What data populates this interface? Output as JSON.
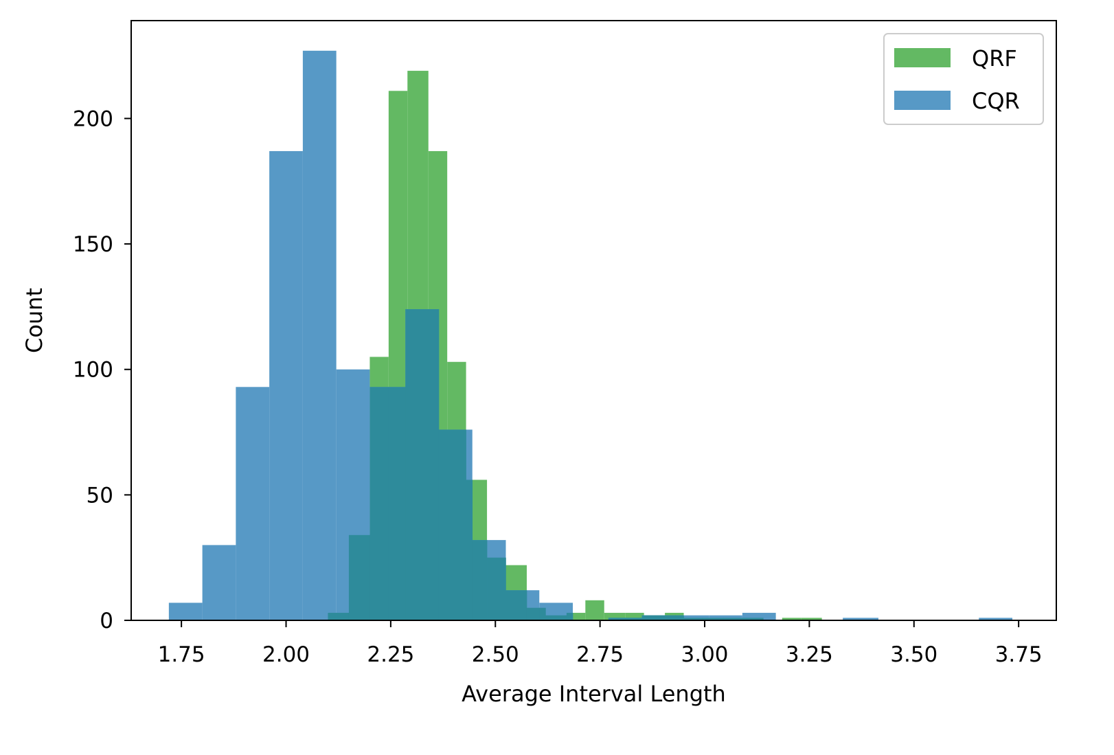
{
  "chart_data": {
    "type": "bar",
    "title": "",
    "xlabel": "Average Interval Length",
    "ylabel": "Count",
    "xlim": [
      1.63,
      3.84
    ],
    "ylim": [
      0,
      239
    ],
    "xticks": [
      1.75,
      2.0,
      2.25,
      2.5,
      2.75,
      3.0,
      3.25,
      3.5,
      3.75
    ],
    "xtick_labels": [
      "1.75",
      "2.00",
      "2.25",
      "2.50",
      "2.75",
      "3.00",
      "3.25",
      "3.50",
      "3.75"
    ],
    "yticks": [
      0,
      50,
      100,
      150,
      200
    ],
    "ytick_labels": [
      "0",
      "50",
      "100",
      "150",
      "200"
    ],
    "grid": false,
    "legend_position": "top-right",
    "overlap_color": "#2e8b9b",
    "series": [
      {
        "name": "QRF",
        "color": "#63b963",
        "bins": [
          {
            "x0": 2.1,
            "x1": 2.15,
            "count": 3
          },
          {
            "x0": 2.15,
            "x1": 2.2,
            "count": 34
          },
          {
            "x0": 2.2,
            "x1": 2.245,
            "count": 105
          },
          {
            "x0": 2.245,
            "x1": 2.29,
            "count": 211
          },
          {
            "x0": 2.29,
            "x1": 2.34,
            "count": 219
          },
          {
            "x0": 2.34,
            "x1": 2.385,
            "count": 187
          },
          {
            "x0": 2.385,
            "x1": 2.43,
            "count": 103
          },
          {
            "x0": 2.43,
            "x1": 2.48,
            "count": 56
          },
          {
            "x0": 2.48,
            "x1": 2.525,
            "count": 25
          },
          {
            "x0": 2.525,
            "x1": 2.575,
            "count": 22
          },
          {
            "x0": 2.575,
            "x1": 2.62,
            "count": 5
          },
          {
            "x0": 2.62,
            "x1": 2.67,
            "count": 2
          },
          {
            "x0": 2.67,
            "x1": 2.715,
            "count": 3
          },
          {
            "x0": 2.715,
            "x1": 2.76,
            "count": 8
          },
          {
            "x0": 2.76,
            "x1": 2.81,
            "count": 3
          },
          {
            "x0": 2.81,
            "x1": 2.855,
            "count": 3
          },
          {
            "x0": 2.855,
            "x1": 2.905,
            "count": 2
          },
          {
            "x0": 2.905,
            "x1": 2.95,
            "count": 3
          },
          {
            "x0": 2.95,
            "x1": 2.995,
            "count": 1
          },
          {
            "x0": 2.995,
            "x1": 3.045,
            "count": 1
          },
          {
            "x0": 3.045,
            "x1": 3.09,
            "count": 1
          },
          {
            "x0": 3.09,
            "x1": 3.14,
            "count": 1
          },
          {
            "x0": 3.14,
            "x1": 3.185,
            "count": 0
          },
          {
            "x0": 3.185,
            "x1": 3.23,
            "count": 1
          },
          {
            "x0": 3.23,
            "x1": 3.28,
            "count": 1
          }
        ]
      },
      {
        "name": "CQR",
        "color": "#5799c6",
        "bins": [
          {
            "x0": 1.72,
            "x1": 1.8,
            "count": 7
          },
          {
            "x0": 1.8,
            "x1": 1.88,
            "count": 30
          },
          {
            "x0": 1.88,
            "x1": 1.96,
            "count": 93
          },
          {
            "x0": 1.96,
            "x1": 2.04,
            "count": 187
          },
          {
            "x0": 2.04,
            "x1": 2.12,
            "count": 227
          },
          {
            "x0": 2.12,
            "x1": 2.2,
            "count": 100
          },
          {
            "x0": 2.2,
            "x1": 2.285,
            "count": 93
          },
          {
            "x0": 2.285,
            "x1": 2.365,
            "count": 124
          },
          {
            "x0": 2.365,
            "x1": 2.445,
            "count": 76
          },
          {
            "x0": 2.445,
            "x1": 2.525,
            "count": 32
          },
          {
            "x0": 2.525,
            "x1": 2.605,
            "count": 12
          },
          {
            "x0": 2.605,
            "x1": 2.685,
            "count": 7
          },
          {
            "x0": 2.685,
            "x1": 2.77,
            "count": 0
          },
          {
            "x0": 2.77,
            "x1": 2.85,
            "count": 1
          },
          {
            "x0": 2.85,
            "x1": 2.93,
            "count": 2
          },
          {
            "x0": 2.93,
            "x1": 3.01,
            "count": 2
          },
          {
            "x0": 3.01,
            "x1": 3.09,
            "count": 2
          },
          {
            "x0": 3.09,
            "x1": 3.17,
            "count": 3
          },
          {
            "x0": 3.17,
            "x1": 3.25,
            "count": 0
          },
          {
            "x0": 3.25,
            "x1": 3.33,
            "count": 0
          },
          {
            "x0": 3.33,
            "x1": 3.415,
            "count": 1
          },
          {
            "x0": 3.415,
            "x1": 3.495,
            "count": 0
          },
          {
            "x0": 3.495,
            "x1": 3.575,
            "count": 0
          },
          {
            "x0": 3.575,
            "x1": 3.655,
            "count": 0
          },
          {
            "x0": 3.655,
            "x1": 3.735,
            "count": 1
          }
        ]
      }
    ]
  }
}
